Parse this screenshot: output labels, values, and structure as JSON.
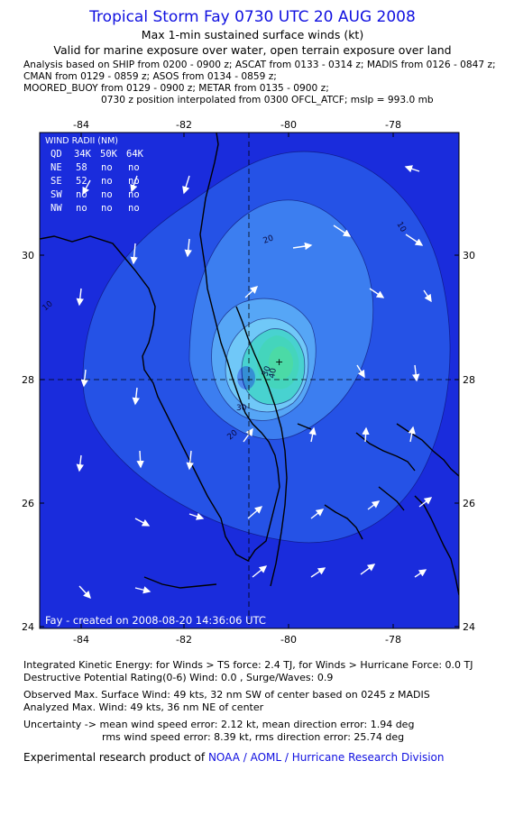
{
  "header": {
    "title": "Tropical Storm Fay 0730 UTC 20 AUG 2008",
    "line2": "Max 1-min sustained surface winds (kt)",
    "line3": "Valid for marine exposure over water, open terrain exposure over land",
    "analysis1": "Analysis based on  SHIP from 0200 - 0900 z;  ASCAT from 0133 - 0314 z;  MADIS from 0126 - 0847 z;",
    "analysis2": "CMAN from 0129 - 0859 z;  ASOS from 0134 - 0859 z;",
    "analysis3": "MOORED_BUOY from 0129 - 0900 z;  METAR from 0135 - 0900 z;",
    "analysis4": "0730 z position interpolated from 0300 OFCL_ATCF; mslp = 993.0 mb"
  },
  "map": {
    "lon_ticks": [
      "-84",
      "-82",
      "-80",
      "-78"
    ],
    "lat_ticks": [
      "30",
      "28",
      "26",
      "24"
    ],
    "credit": "Fay - created on 2008-08-20 14:36:06 UTC",
    "contour_labels": [
      "10",
      "20",
      "10",
      "30",
      "30",
      "40",
      "20"
    ],
    "colors": {
      "level0": "#1a2cdc",
      "level1": "#2552e6",
      "level2": "#3c7ef0",
      "level3": "#56a6f6",
      "level4": "#70c8f8",
      "level5": "#48d2d0",
      "level6": "#40dca0",
      "level7": "#50e868",
      "center": "#1a2cdc"
    }
  },
  "wind_radii": {
    "title": "WIND RADII (NM)",
    "headers": [
      "QD",
      "34K",
      "50K",
      "64K"
    ],
    "rows": [
      {
        "q": "NE",
        "k34": "58",
        "k50": "no",
        "k64": "no"
      },
      {
        "q": "SE",
        "k34": "52",
        "k50": "no",
        "k64": "no"
      },
      {
        "q": "SW",
        "k34": "no",
        "k50": "no",
        "k64": "no"
      },
      {
        "q": "NW",
        "k34": "no",
        "k50": "no",
        "k64": "no"
      }
    ]
  },
  "footer": {
    "ike": "Integrated Kinetic Energy:  for Winds > TS force: 2.4 TJ,  for Winds > Hurricane Force: 0.0 TJ",
    "dpr": "Destructive Potential Rating(0-6)   Wind: 0.0 , Surge/Waves: 0.9",
    "observed": "Observed Max. Surface Wind: 49 kts, 32 nm SW of center based on 0245 z MADIS",
    "analyzed": "Analyzed Max. Wind: 49 kts, 36 nm NE of center",
    "uncert1": "Uncertainty -> mean wind speed error: 2.12 kt,   mean direction error: 1.94 deg",
    "uncert2": "rms wind speed error: 8.39 kt,   rms direction error: 25.74 deg",
    "product_prefix": "Experimental research product of",
    "product_org": "NOAA / AOML / Hurricane Research Division"
  }
}
